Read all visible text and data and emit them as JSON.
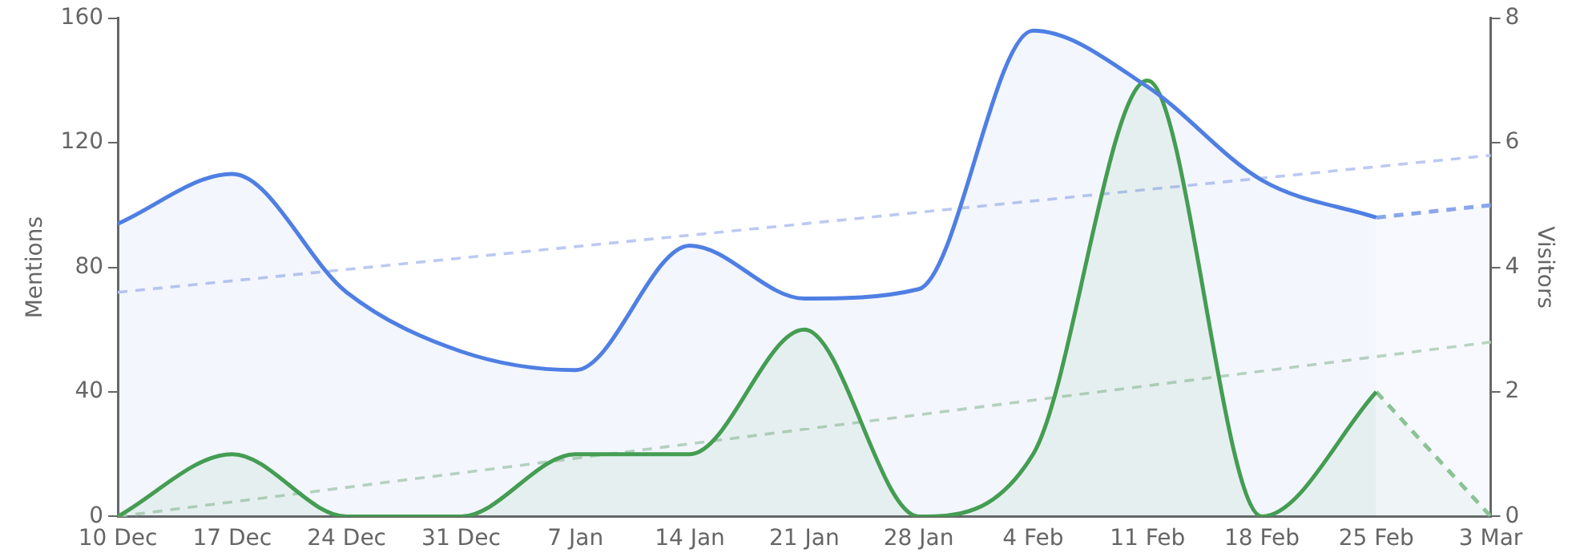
{
  "chart_data": {
    "type": "area",
    "ylabel": "Mentions",
    "y2label": "Visitors",
    "categories": [
      "10 Dec",
      "17 Dec",
      "24 Dec",
      "31 Dec",
      "7 Jan",
      "14 Jan",
      "21 Jan",
      "28 Jan",
      "4 Feb",
      "11 Feb",
      "18 Feb",
      "25 Feb",
      "3 Mar"
    ],
    "series": [
      {
        "type": "area",
        "color": "#4f7fe3",
        "values": [
          94,
          110,
          72,
          53,
          47,
          87,
          70,
          73,
          156,
          138,
          108,
          96,
          null
        ]
      },
      {
        "type": "area",
        "color": "#8aa6ea",
        "line_style": "dashed",
        "values": [
          null,
          null,
          null,
          null,
          null,
          null,
          null,
          null,
          null,
          null,
          null,
          96,
          100
        ]
      },
      {
        "type": "area",
        "axis": "y2",
        "color": "#43a047",
        "values": [
          0,
          1,
          0,
          0,
          1,
          1,
          3,
          0,
          1,
          7,
          0,
          2,
          null
        ]
      },
      {
        "type": "area",
        "axis": "y2",
        "color": "#8cc58f",
        "line_style": "dashed",
        "values": [
          null,
          null,
          null,
          null,
          null,
          null,
          null,
          null,
          null,
          null,
          null,
          2,
          0
        ]
      },
      {
        "type": "line",
        "color": "#bccaf2",
        "line_style": "dashed",
        "values": [
          72,
          null,
          null,
          null,
          null,
          null,
          null,
          null,
          null,
          null,
          null,
          null,
          116
        ]
      },
      {
        "type": "line",
        "axis": "y2",
        "color": "#bcd8bd",
        "line_style": "dashed",
        "values": [
          0,
          null,
          null,
          null,
          null,
          null,
          null,
          null,
          null,
          null,
          null,
          null,
          2.8
        ]
      }
    ],
    "ylim": [
      0,
      160
    ],
    "yticks": [
      0,
      40,
      80,
      120,
      160
    ],
    "y2lim": [
      0,
      8
    ],
    "y2ticks": [
      0,
      2,
      4,
      6,
      8
    ],
    "grid": false,
    "legend": false
  }
}
